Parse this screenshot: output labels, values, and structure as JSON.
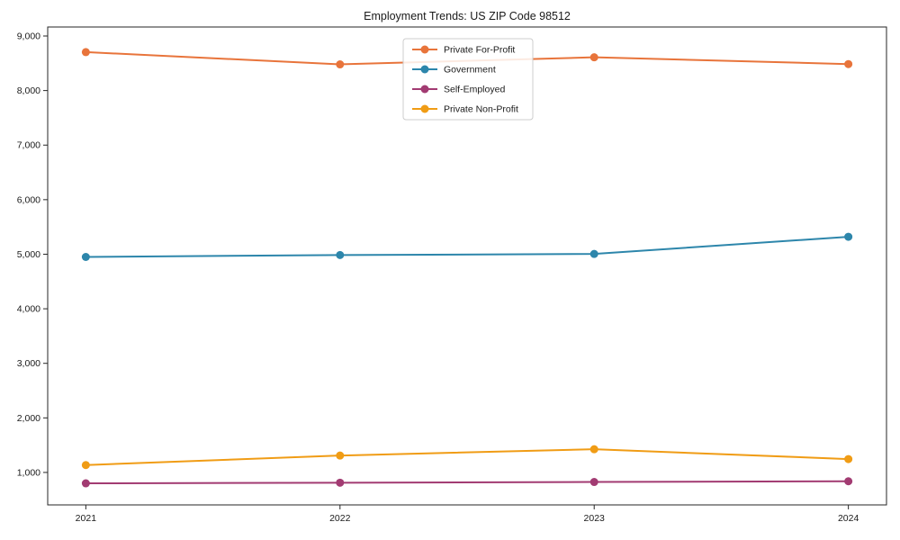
{
  "chart_data": {
    "type": "line",
    "title": "Employment Trends: US ZIP Code 98512",
    "categories": [
      "2021",
      "2022",
      "2023",
      "2024"
    ],
    "series": [
      {
        "name": "Private For-Profit",
        "color": "#E8743B",
        "values": [
          8705,
          8480,
          8610,
          8485
        ]
      },
      {
        "name": "Government",
        "color": "#2D86AB",
        "values": [
          4950,
          4985,
          5005,
          5320
        ]
      },
      {
        "name": "Self-Employed",
        "color": "#A23B72",
        "values": [
          800,
          812,
          825,
          838
        ]
      },
      {
        "name": "Private Non-Profit",
        "color": "#F09C15",
        "values": [
          1135,
          1310,
          1425,
          1245
        ]
      }
    ],
    "xlabel": "",
    "ylabel": "",
    "ylim": [
      405,
      9165
    ],
    "yticks": [
      1000,
      2000,
      3000,
      4000,
      5000,
      6000,
      7000,
      8000,
      9000
    ],
    "ytick_labels": [
      "1,000",
      "2,000",
      "3,000",
      "4,000",
      "5,000",
      "6,000",
      "7,000",
      "8,000",
      "9,000"
    ],
    "grid": false,
    "legend_position": "upper center",
    "marker": "circle",
    "line_width": 2,
    "marker_radius": 4.5,
    "spine_color": "#262626",
    "background_color": "#ffffff"
  }
}
